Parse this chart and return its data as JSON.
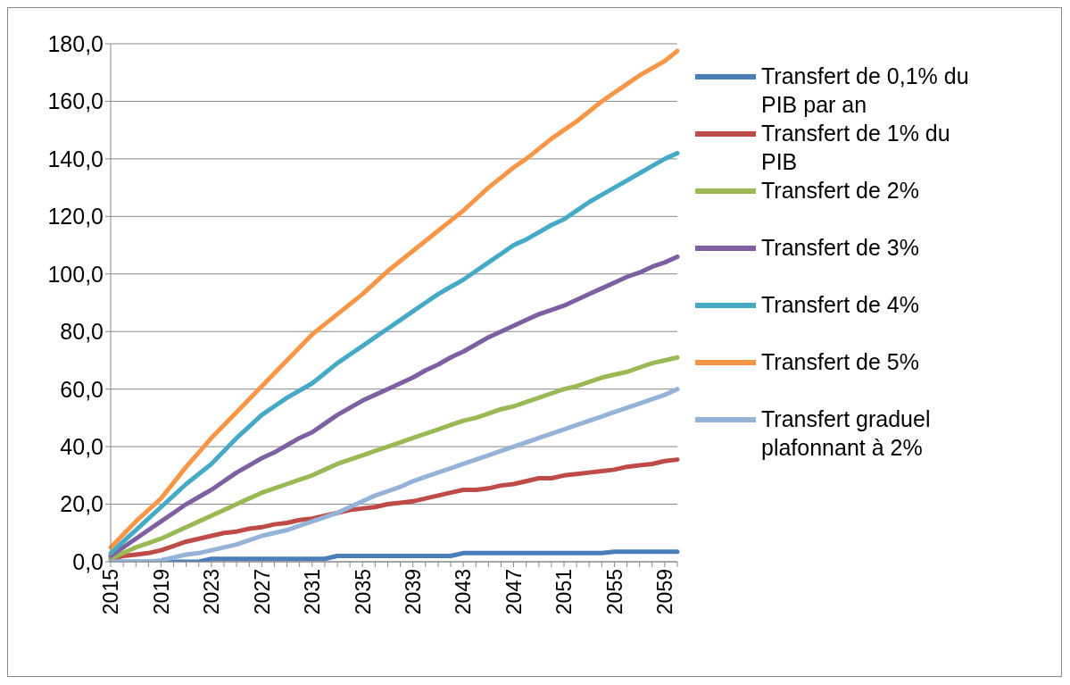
{
  "chart_data": {
    "type": "line",
    "categories": [
      "2015",
      null,
      null,
      null,
      "2019",
      null,
      null,
      null,
      "2023",
      null,
      null,
      null,
      "2027",
      null,
      null,
      null,
      "2031",
      null,
      null,
      null,
      "2035",
      null,
      null,
      null,
      "2039",
      null,
      null,
      null,
      "2043",
      null,
      null,
      null,
      "2047",
      null,
      null,
      null,
      "2051",
      null,
      null,
      null,
      "2055",
      null,
      null,
      null,
      "2059",
      null
    ],
    "series": [
      {
        "name": "Transfert de 0,1% du PIB par an",
        "color": "#4a7ebb",
        "values": [
          0,
          0,
          0,
          0,
          0,
          0,
          0,
          0,
          1,
          1,
          1,
          1,
          1,
          1,
          1,
          1,
          1,
          1,
          2,
          2,
          2,
          2,
          2,
          2,
          2,
          2,
          2,
          2,
          3,
          3,
          3,
          3,
          3,
          3,
          3,
          3,
          3,
          3,
          3,
          3,
          3.5,
          3.5,
          3.5,
          3.5,
          3.5,
          3.5
        ]
      },
      {
        "name": "Transfert de 1% du PIB",
        "color": "#be4b48",
        "values": [
          1,
          2,
          2.5,
          3,
          4,
          5.5,
          7,
          8,
          9,
          10,
          10.5,
          11.5,
          12,
          13,
          13.5,
          14.5,
          15,
          16,
          17,
          18,
          18.5,
          19,
          20,
          20.5,
          21,
          22,
          23,
          24,
          25,
          25,
          25.5,
          26.5,
          27,
          28,
          29,
          29,
          30,
          30.5,
          31,
          31.5,
          32,
          33,
          33.5,
          34,
          35,
          35.5
        ]
      },
      {
        "name": "Transfert de 2%",
        "color": "#98b954",
        "values": [
          1,
          3,
          5,
          6.5,
          8,
          10,
          12,
          14,
          16,
          18,
          20,
          22,
          24,
          25.5,
          27,
          28.5,
          30,
          32,
          34,
          35.5,
          37,
          38.5,
          40,
          41.5,
          43,
          44.5,
          46,
          47.5,
          49,
          50,
          51.5,
          53,
          54,
          55.5,
          57,
          58.5,
          60,
          61,
          62.5,
          64,
          65,
          66,
          67.5,
          69,
          70,
          71
        ]
      },
      {
        "name": "Transfert de 3%",
        "color": "#7d60a0",
        "values": [
          2,
          5,
          8,
          11,
          14,
          17,
          20,
          22.5,
          25,
          28,
          31,
          33.5,
          36,
          38,
          40.5,
          43,
          45,
          48,
          51,
          53.5,
          56,
          58,
          60,
          62,
          64,
          66.5,
          68.5,
          71,
          73,
          75.5,
          78,
          80,
          82,
          84,
          86,
          87.5,
          89,
          91,
          93,
          95,
          97,
          99,
          100.5,
          102.5,
          104,
          106
        ]
      },
      {
        "name": "Transfert de 4%",
        "color": "#46aac5",
        "values": [
          3,
          7,
          11,
          15,
          19,
          23,
          27,
          30.5,
          34,
          38.5,
          43,
          47,
          51,
          54,
          57,
          59.5,
          62,
          65.5,
          69,
          72,
          75,
          78,
          81,
          84,
          87,
          90,
          93,
          95.5,
          98,
          101,
          104,
          107,
          110,
          112,
          114.5,
          117,
          119,
          122,
          125,
          127.5,
          130,
          132.5,
          135,
          137.5,
          140,
          142
        ]
      },
      {
        "name": "Transfert de 5%",
        "color": "#f79646",
        "values": [
          5,
          9.5,
          14,
          18,
          22,
          27.5,
          33,
          38,
          43,
          47.5,
          52,
          56.5,
          61,
          65.5,
          70,
          74.5,
          79,
          82.5,
          86,
          89.5,
          93,
          97,
          101,
          104.5,
          108,
          111.5,
          115,
          118.5,
          122,
          126,
          130,
          133.5,
          137,
          140,
          143.5,
          147,
          150,
          153,
          156.5,
          160,
          163,
          166,
          169,
          171.5,
          174,
          177.5
        ]
      },
      {
        "name": "Transfert graduel plafonnant à 2%",
        "color": "#94b3d6",
        "values": [
          0,
          0,
          0,
          0,
          0.5,
          1.5,
          2.5,
          3,
          4,
          5,
          6,
          7.5,
          9,
          10,
          11,
          12.5,
          14,
          15.5,
          17,
          19,
          21,
          23,
          24.5,
          26,
          28,
          29.5,
          31,
          32.5,
          34,
          35.5,
          37,
          38.5,
          40,
          41.5,
          43,
          44.5,
          46,
          47.5,
          49,
          50.5,
          52,
          53.5,
          55,
          56.5,
          58,
          60
        ]
      }
    ],
    "ylim": [
      0,
      180
    ],
    "yticks": [
      {
        "value": 0,
        "label": "0,0"
      },
      {
        "value": 20,
        "label": "20,0"
      },
      {
        "value": 40,
        "label": "40,0"
      },
      {
        "value": 60,
        "label": "60,0"
      },
      {
        "value": 80,
        "label": "80,0"
      },
      {
        "value": 100,
        "label": "100,0"
      },
      {
        "value": 120,
        "label": "120,0"
      },
      {
        "value": 140,
        "label": "140,0"
      },
      {
        "value": 160,
        "label": "160,0"
      },
      {
        "value": 180,
        "label": "180,0"
      }
    ],
    "grid": "y",
    "legend": "right",
    "marker": "none",
    "line_style": "solid"
  }
}
